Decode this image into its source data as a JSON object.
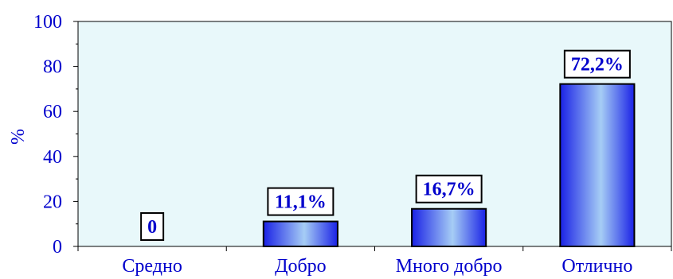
{
  "chart_data": {
    "type": "bar",
    "ylabel": "%",
    "ylim": [
      0,
      100
    ],
    "yticks": [
      0,
      20,
      40,
      60,
      80,
      100
    ],
    "grid": false,
    "categories": [
      "Средно",
      "Добро",
      "Много добро",
      "Отлично"
    ],
    "values": [
      0,
      11.1,
      16.7,
      72.2
    ],
    "data_labels": [
      "0",
      "11,1%",
      "16,7%",
      "72,2%"
    ]
  },
  "colors": {
    "plot_background": "#e8f8fa",
    "axis_text": "#0000cc",
    "bar_dark": "#1a22e6",
    "bar_light": "#a6cdf5",
    "label_text": "#0000cc"
  }
}
